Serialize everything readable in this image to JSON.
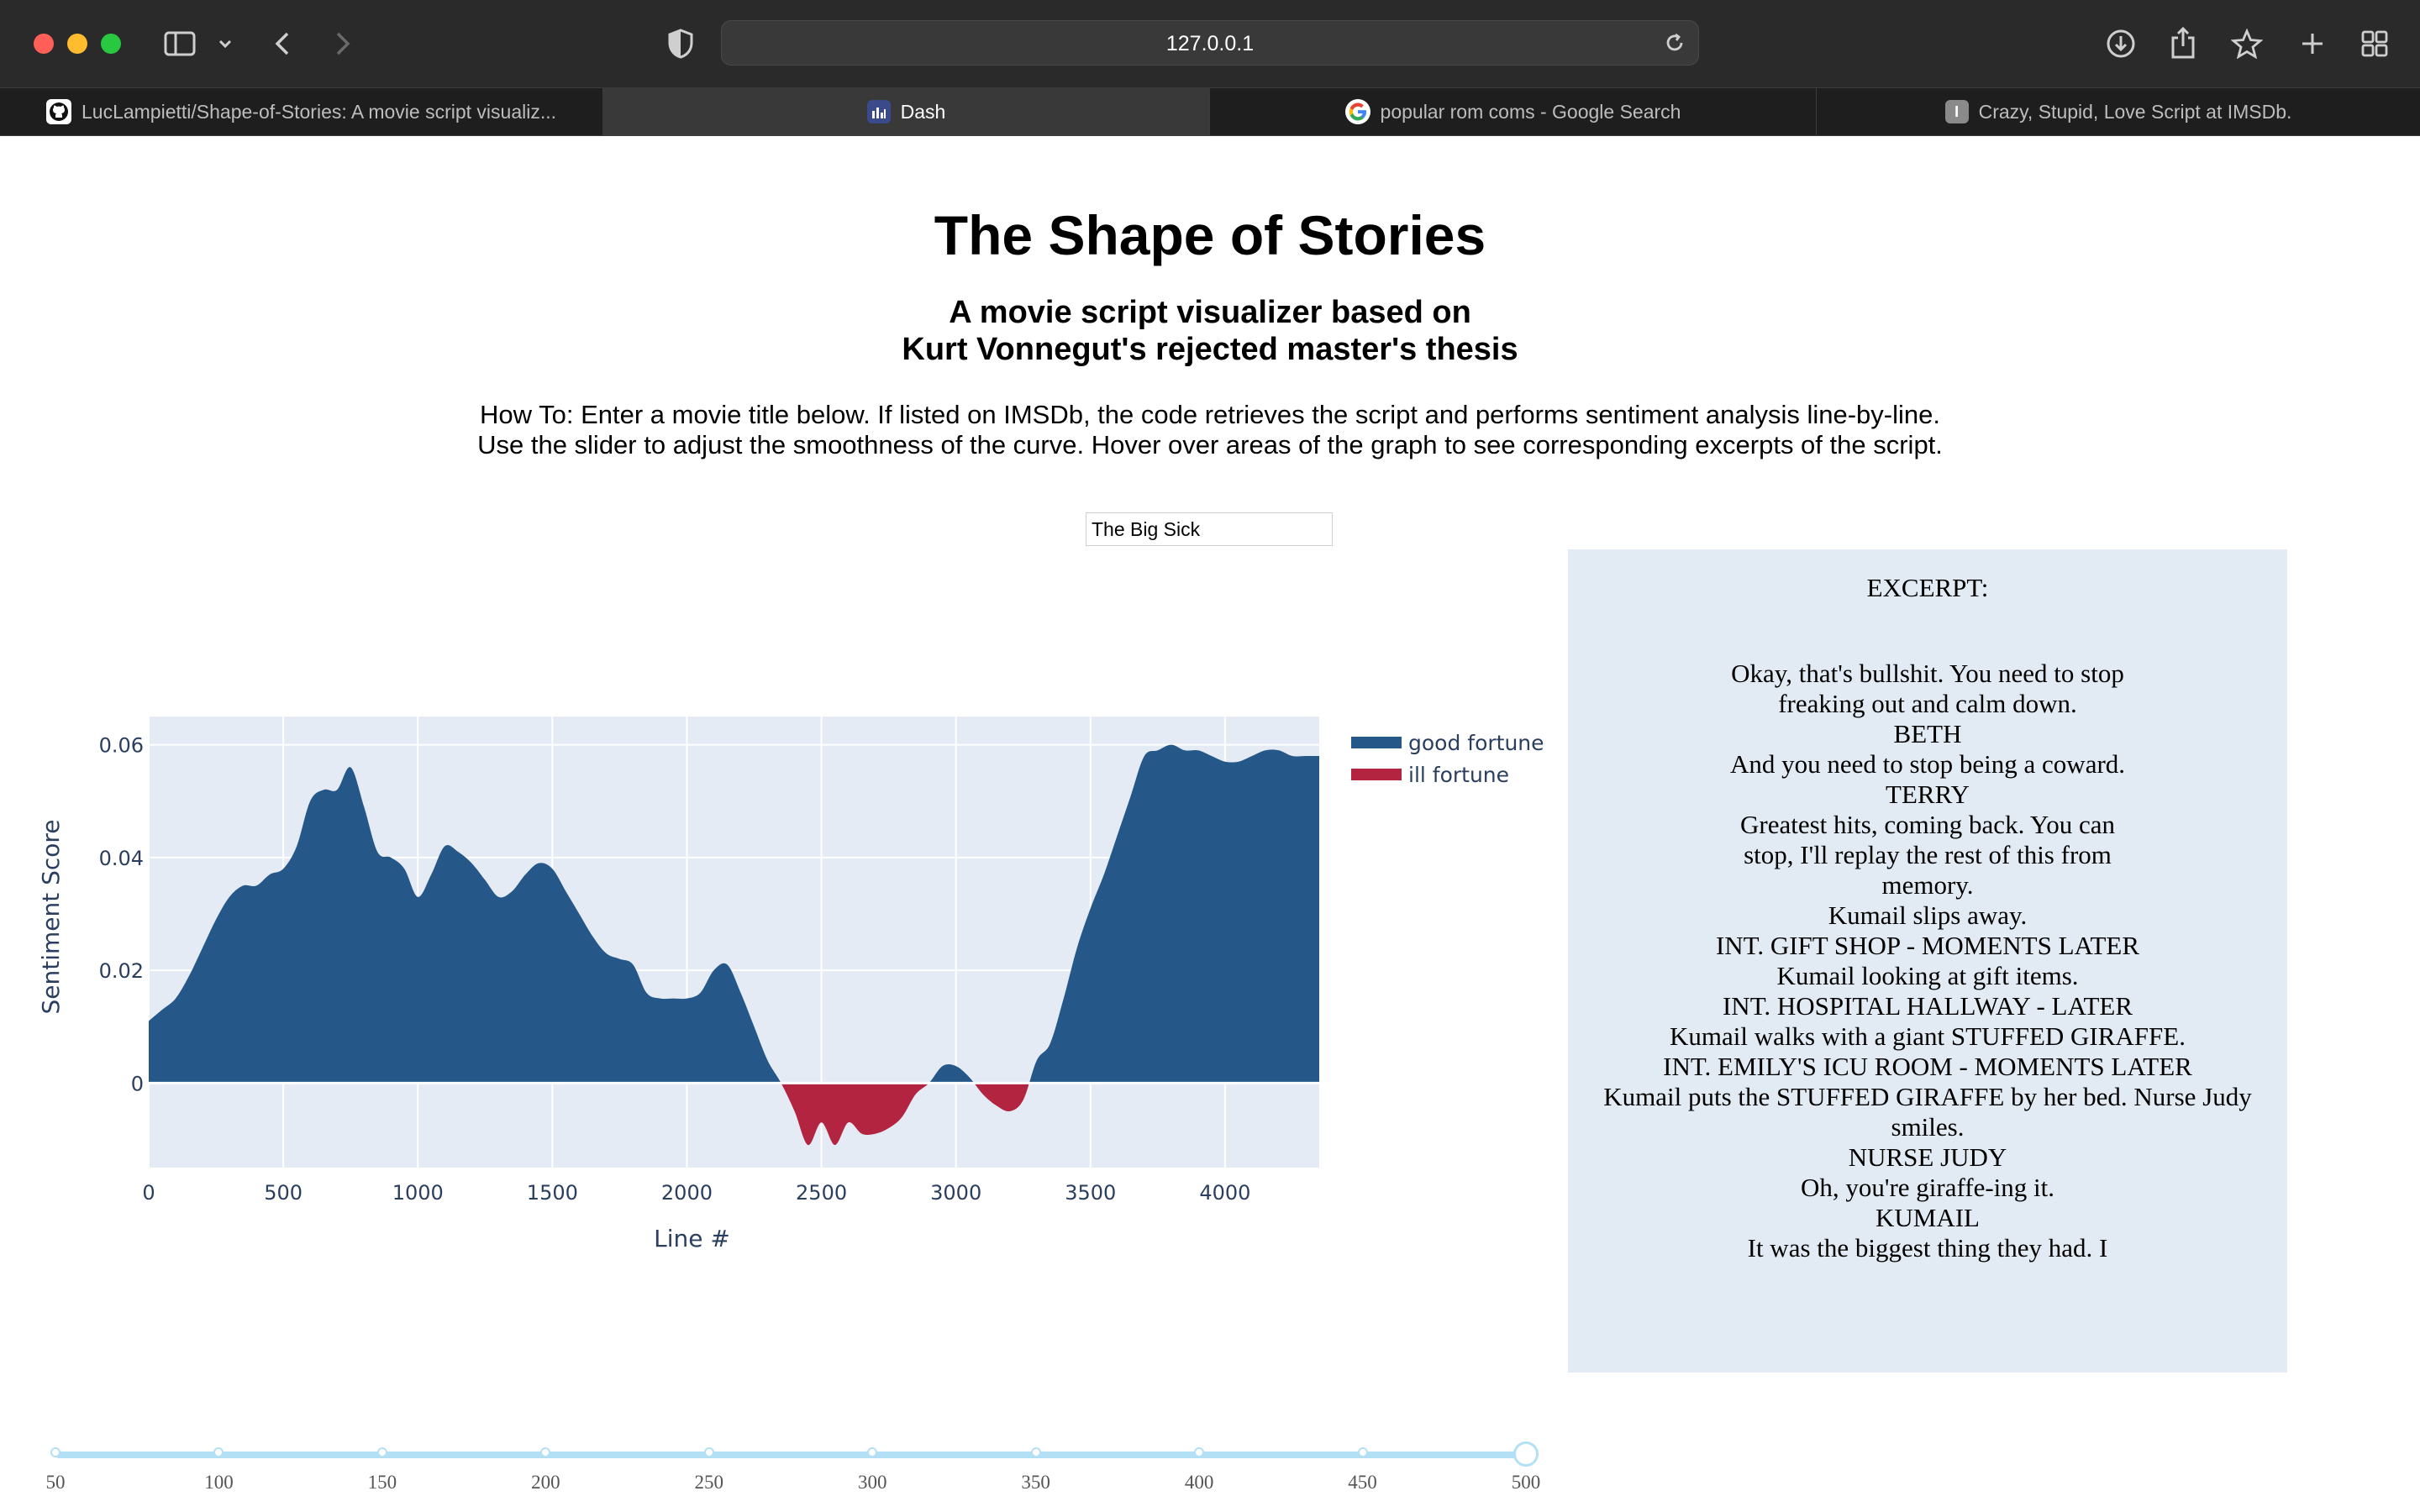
{
  "browser": {
    "url": "127.0.0.1",
    "tabs": [
      {
        "label": "LucLampietti/Shape-of-Stories: A movie script visualiz...",
        "icon": "github-icon",
        "active": false
      },
      {
        "label": "Dash",
        "icon": "dash-icon",
        "active": true
      },
      {
        "label": "popular rom coms - Google Search",
        "icon": "google-icon",
        "active": false
      },
      {
        "label": "Crazy, Stupid, Love Script at IMSDb.",
        "icon": "imsdb-icon",
        "active": false
      }
    ]
  },
  "page": {
    "title": "The Shape of Stories",
    "subtitle_line1": "A movie script visualizer based on",
    "subtitle_line2": "Kurt Vonnegut's rejected master's thesis",
    "howto_line1": "How To: Enter a movie title below. If listed on IMSDb, the code retrieves the script and performs sentiment analysis line-by-line.",
    "howto_line2": "Use the slider to adjust the smoothness of the curve. Hover over areas of the graph to see corresponding excerpts of the script.",
    "movie_input_value": "The Big Sick"
  },
  "excerpt": {
    "heading": "EXCERPT:",
    "text": "Okay, that's bullshit. You need to stop\nfreaking out and calm down.\nBETH\nAnd you need to stop being a coward.\nTERRY\nGreatest hits, coming back. You can\nstop, I'll replay the rest of this from\nmemory.\nKumail slips away.\nINT. GIFT SHOP - MOMENTS LATER\nKumail looking at gift items.\nINT. HOSPITAL HALLWAY - LATER\nKumail walks with a giant STUFFED GIRAFFE.\nINT. EMILY'S ICU ROOM - MOMENTS LATER\nKumail puts the STUFFED GIRAFFE by her bed. Nurse Judy\nsmiles.\nNURSE JUDY\nOh, you're giraffe-ing it.\nKUMAIL\nIt was the biggest thing they had. I"
  },
  "slider": {
    "labels": [
      "50",
      "100",
      "150",
      "200",
      "250",
      "300",
      "350",
      "400",
      "450",
      "500"
    ],
    "min": 50,
    "max": 500,
    "value": 500
  },
  "colors": {
    "good": "#255889",
    "ill": "#b2243f",
    "plot_bg": "#e5ebf5",
    "slider": "#b3e0f5",
    "panel": "#e2eaf3"
  },
  "chart_data": {
    "type": "area",
    "xlabel": "Line #",
    "ylabel": "Sentiment Score",
    "xlim": [
      0,
      4350
    ],
    "ylim": [
      -0.015,
      0.065
    ],
    "xticks": [
      0,
      500,
      1000,
      1500,
      2000,
      2500,
      3000,
      3500,
      4000
    ],
    "yticks": [
      0,
      0.02,
      0.04,
      0.06
    ],
    "ytick_labels": [
      "0",
      "0.02",
      "0.04",
      "0.06"
    ],
    "legend": [
      {
        "name": "good fortune",
        "color": "#255889"
      },
      {
        "name": "ill fortune",
        "color": "#b2243f"
      }
    ],
    "legend_position": "top-right, outside plot",
    "grid": true,
    "x": [
      0,
      50,
      100,
      150,
      200,
      250,
      300,
      350,
      400,
      450,
      500,
      550,
      600,
      650,
      700,
      750,
      800,
      850,
      900,
      950,
      1000,
      1050,
      1100,
      1150,
      1200,
      1250,
      1300,
      1350,
      1400,
      1450,
      1500,
      1550,
      1600,
      1650,
      1700,
      1750,
      1800,
      1850,
      1900,
      1950,
      2000,
      2050,
      2100,
      2150,
      2200,
      2250,
      2300,
      2350,
      2400,
      2450,
      2500,
      2550,
      2600,
      2650,
      2700,
      2750,
      2800,
      2850,
      2900,
      2950,
      3000,
      3050,
      3100,
      3150,
      3200,
      3250,
      3300,
      3350,
      3400,
      3450,
      3500,
      3550,
      3600,
      3650,
      3700,
      3750,
      3800,
      3850,
      3900,
      3950,
      4000,
      4050,
      4100,
      4150,
      4200,
      4250,
      4300,
      4350
    ],
    "y": [
      0.011,
      0.013,
      0.015,
      0.019,
      0.024,
      0.029,
      0.033,
      0.035,
      0.035,
      0.037,
      0.038,
      0.042,
      0.05,
      0.052,
      0.052,
      0.056,
      0.049,
      0.041,
      0.04,
      0.038,
      0.033,
      0.037,
      0.042,
      0.041,
      0.039,
      0.036,
      0.033,
      0.034,
      0.037,
      0.039,
      0.038,
      0.034,
      0.03,
      0.026,
      0.023,
      0.022,
      0.021,
      0.016,
      0.015,
      0.015,
      0.015,
      0.016,
      0.02,
      0.021,
      0.016,
      0.01,
      0.004,
      0.0,
      -0.005,
      -0.011,
      -0.007,
      -0.011,
      -0.007,
      -0.009,
      -0.009,
      -0.008,
      -0.006,
      -0.002,
      0.0,
      0.003,
      0.003,
      0.001,
      -0.002,
      -0.004,
      -0.005,
      -0.003,
      0.004,
      0.007,
      0.015,
      0.024,
      0.031,
      0.037,
      0.044,
      0.051,
      0.058,
      0.059,
      0.06,
      0.059,
      0.059,
      0.058,
      0.057,
      0.057,
      0.058,
      0.059,
      0.059,
      0.058,
      0.058,
      0.058
    ]
  }
}
